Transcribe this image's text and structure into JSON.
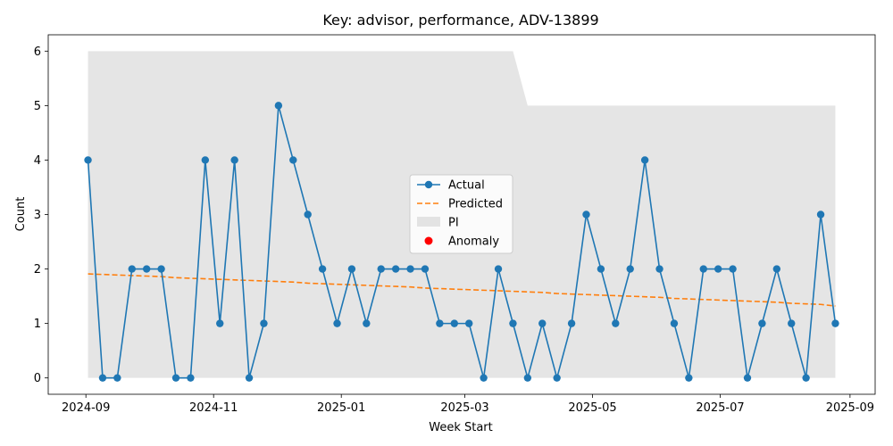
{
  "chart_data": {
    "type": "line",
    "title": "Key: advisor, performance, ADV-13899",
    "xlabel": "Week Start",
    "ylabel": "Count",
    "ylim": [
      -0.3,
      6.3
    ],
    "y_ticks": [
      0,
      1,
      2,
      3,
      4,
      5,
      6
    ],
    "x_ticks": [
      {
        "date": "2024-09-01",
        "label": "2024-09"
      },
      {
        "date": "2024-11-01",
        "label": "2024-11"
      },
      {
        "date": "2025-01-01",
        "label": "2025-01"
      },
      {
        "date": "2025-03-01",
        "label": "2025-03"
      },
      {
        "date": "2025-05-01",
        "label": "2025-05"
      },
      {
        "date": "2025-07-01",
        "label": "2025-07"
      },
      {
        "date": "2025-09-01",
        "label": "2025-09"
      }
    ],
    "xlim": [
      "2024-08-14",
      "2025-09-13"
    ],
    "grid": false,
    "legend_position": "center",
    "colors": {
      "actual": "#1f77b4",
      "predicted": "#ff7f0e",
      "pi": "#d3d3d3",
      "anomaly": "#ff0000"
    },
    "legend": [
      {
        "key": "actual",
        "label": "Actual"
      },
      {
        "key": "predicted",
        "label": "Predicted"
      },
      {
        "key": "pi",
        "label": "PI"
      },
      {
        "key": "anomaly",
        "label": "Anomaly"
      }
    ],
    "x": [
      "2024-09-02",
      "2024-09-09",
      "2024-09-16",
      "2024-09-23",
      "2024-09-30",
      "2024-10-07",
      "2024-10-14",
      "2024-10-21",
      "2024-10-28",
      "2024-11-04",
      "2024-11-11",
      "2024-11-18",
      "2024-11-25",
      "2024-12-02",
      "2024-12-09",
      "2024-12-16",
      "2024-12-23",
      "2024-12-30",
      "2025-01-06",
      "2025-01-13",
      "2025-01-20",
      "2025-01-27",
      "2025-02-03",
      "2025-02-10",
      "2025-02-17",
      "2025-02-24",
      "2025-03-03",
      "2025-03-10",
      "2025-03-17",
      "2025-03-24",
      "2025-03-31",
      "2025-04-07",
      "2025-04-14",
      "2025-04-21",
      "2025-04-28",
      "2025-05-05",
      "2025-05-12",
      "2025-05-19",
      "2025-05-26",
      "2025-06-02",
      "2025-06-09",
      "2025-06-16",
      "2025-06-23",
      "2025-06-30",
      "2025-07-07",
      "2025-07-14",
      "2025-07-21",
      "2025-07-28",
      "2025-08-04",
      "2025-08-11",
      "2025-08-18",
      "2025-08-25"
    ],
    "series": [
      {
        "name": "Actual",
        "values": [
          4,
          0,
          0,
          2,
          2,
          2,
          0,
          0,
          4,
          1,
          4,
          0,
          1,
          5,
          4,
          3,
          2,
          1,
          2,
          1,
          2,
          2,
          2,
          2,
          1,
          1,
          1,
          0,
          2,
          1,
          0,
          1,
          0,
          1,
          3,
          2,
          1,
          2,
          4,
          2,
          1,
          0,
          2,
          2,
          2,
          0,
          1,
          2,
          1,
          0,
          3,
          1
        ]
      },
      {
        "name": "Predicted",
        "values": [
          1.91,
          1.9,
          1.89,
          1.88,
          1.87,
          1.86,
          1.84,
          1.83,
          1.82,
          1.81,
          1.8,
          1.79,
          1.78,
          1.77,
          1.76,
          1.74,
          1.73,
          1.72,
          1.71,
          1.7,
          1.69,
          1.68,
          1.67,
          1.65,
          1.64,
          1.63,
          1.62,
          1.61,
          1.6,
          1.59,
          1.58,
          1.57,
          1.55,
          1.54,
          1.53,
          1.52,
          1.51,
          1.5,
          1.49,
          1.48,
          1.46,
          1.45,
          1.44,
          1.43,
          1.42,
          1.41,
          1.4,
          1.39,
          1.37,
          1.36,
          1.35,
          1.32
        ]
      }
    ],
    "pi_upper": [
      6,
      6,
      6,
      6,
      6,
      6,
      6,
      6,
      6,
      6,
      6,
      6,
      6,
      6,
      6,
      6,
      6,
      6,
      6,
      6,
      6,
      6,
      6,
      6,
      6,
      6,
      6,
      6,
      6,
      6,
      5,
      5,
      5,
      5,
      5,
      5,
      5,
      5,
      5,
      5,
      5,
      5,
      5,
      5,
      5,
      5,
      5,
      5,
      5,
      5,
      5,
      5
    ],
    "pi_lower": [
      0,
      0,
      0,
      0,
      0,
      0,
      0,
      0,
      0,
      0,
      0,
      0,
      0,
      0,
      0,
      0,
      0,
      0,
      0,
      0,
      0,
      0,
      0,
      0,
      0,
      0,
      0,
      0,
      0,
      0,
      0,
      0,
      0,
      0,
      0,
      0,
      0,
      0,
      0,
      0,
      0,
      0,
      0,
      0,
      0,
      0,
      0,
      0,
      0,
      0,
      0,
      0
    ],
    "anomalies": []
  }
}
